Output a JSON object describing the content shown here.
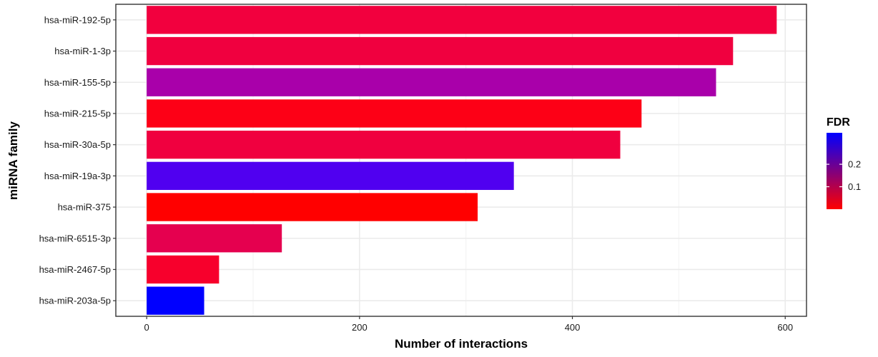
{
  "chart_data": {
    "type": "bar",
    "orientation": "horizontal",
    "xlabel": "Number of interactions",
    "ylabel": "miRNA family",
    "xlim": [
      -29,
      620
    ],
    "x_ticks": [
      0,
      200,
      400,
      600
    ],
    "grid": true,
    "categories": [
      "hsa-miR-192-5p",
      "hsa-miR-1-3p",
      "hsa-miR-155-5p",
      "hsa-miR-215-5p",
      "hsa-miR-30a-5p",
      "hsa-miR-19a-3p",
      "hsa-miR-375",
      "hsa-miR-6515-3p",
      "hsa-miR-2467-5p",
      "hsa-miR-203a-5p"
    ],
    "values": [
      592,
      551,
      535,
      465,
      445,
      345,
      311,
      127,
      68,
      54
    ],
    "fdr": [
      0.03,
      0.03,
      0.16,
      0.005,
      0.035,
      0.27,
      0.002,
      0.055,
      0.025,
      0.34
    ],
    "fill_colors": [
      "#f2003e",
      "#f0003f",
      "#a900aa",
      "#fd0016",
      "#f0003f",
      "#5000f0",
      "#ff0000",
      "#e5004f",
      "#f7002c",
      "#0000ff"
    ],
    "legend": {
      "title": "FDR",
      "position": "right",
      "ticks": [
        0.1,
        0.2
      ],
      "tick_labels": [
        "0.1",
        "0.2"
      ],
      "range": [
        0.0,
        0.34
      ],
      "low_color": "#ff0000",
      "high_color": "#0000ff"
    }
  }
}
